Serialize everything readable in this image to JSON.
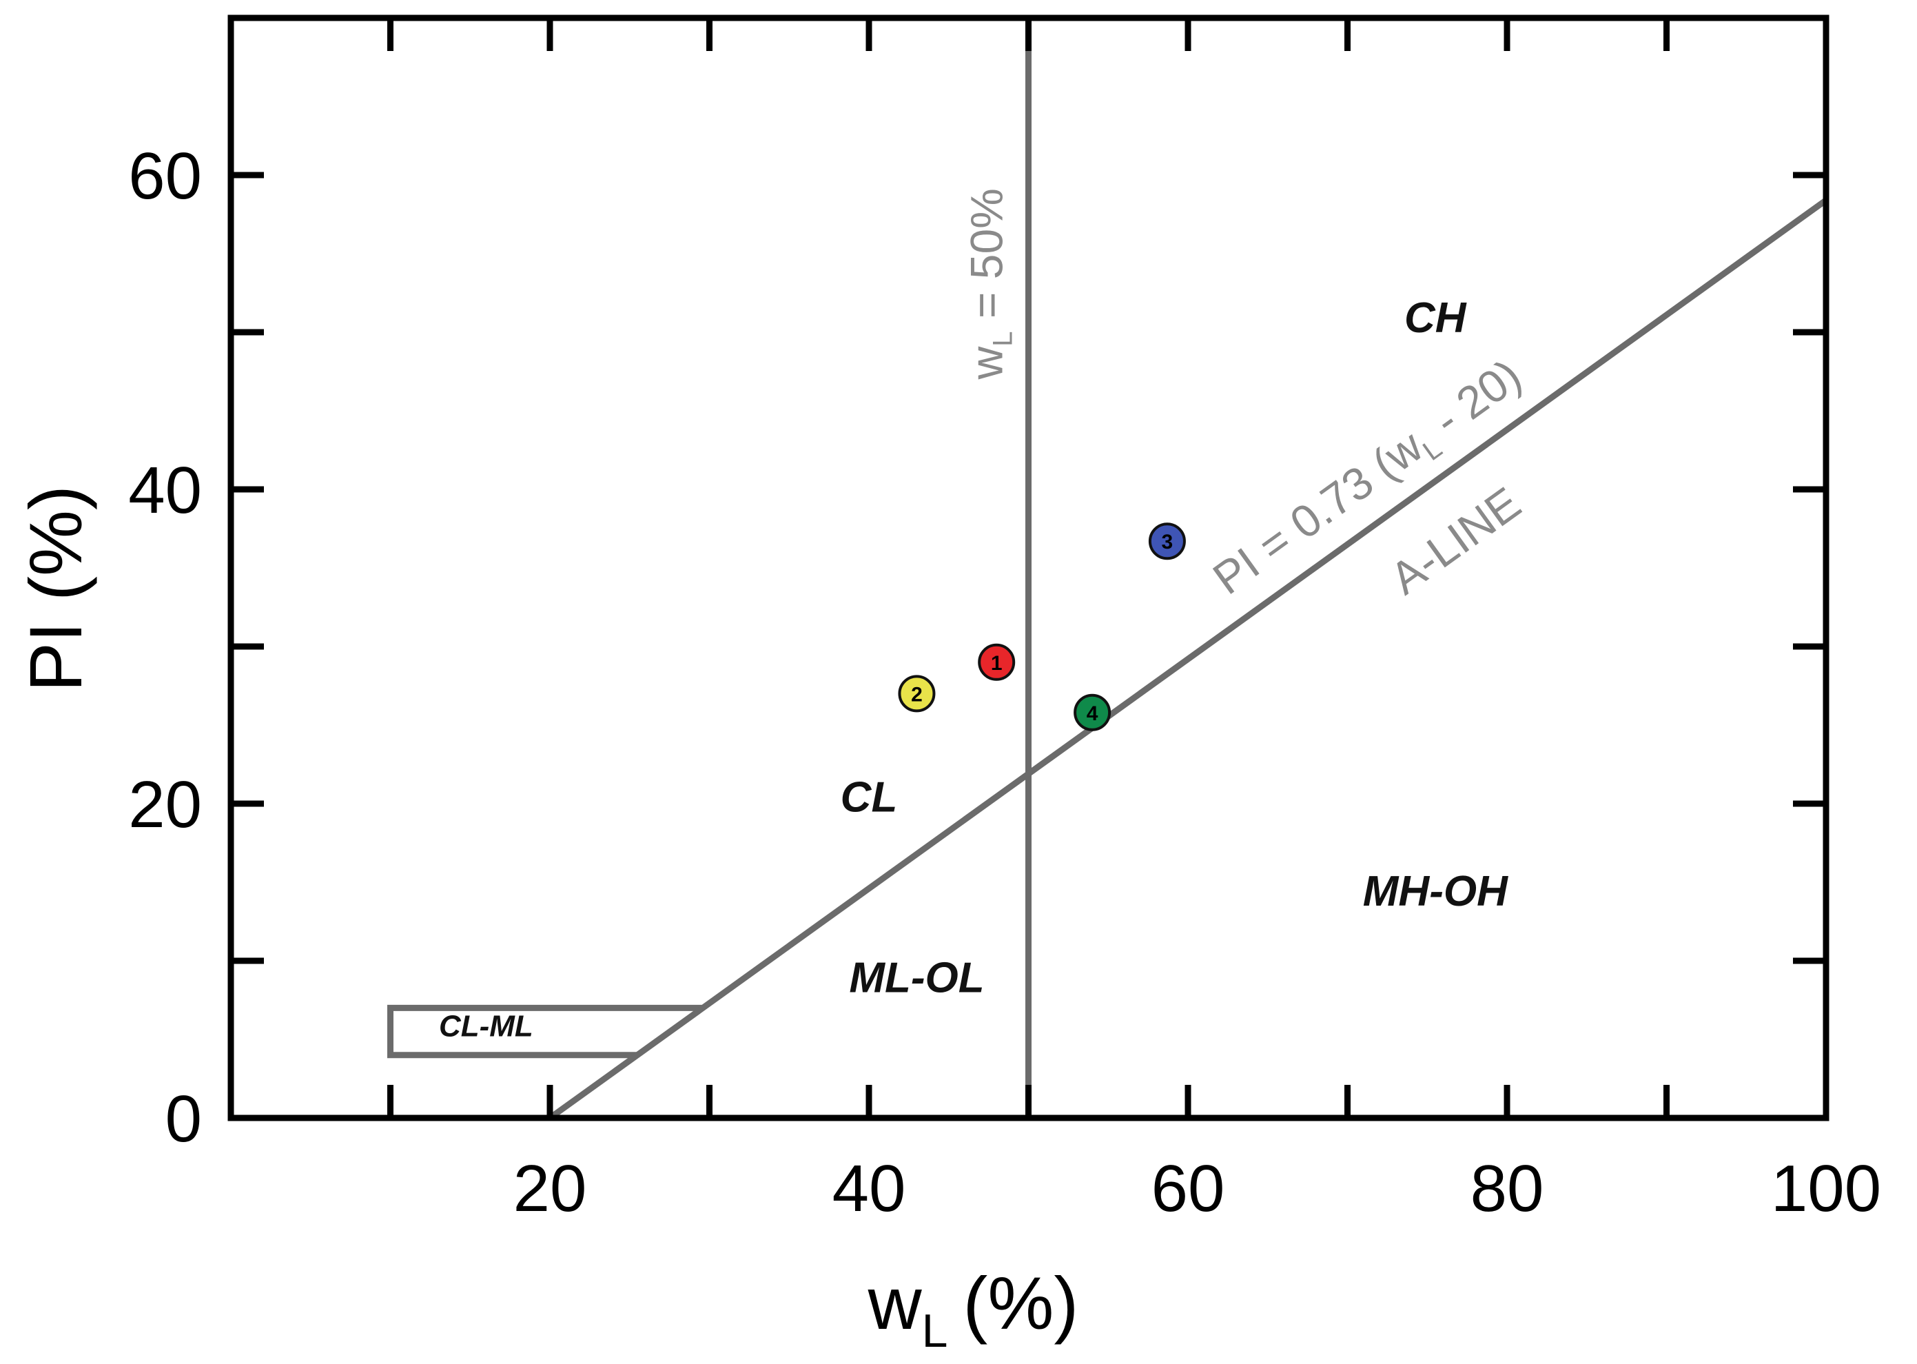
{
  "chart_data": {
    "type": "scatter",
    "title": "",
    "xlabel": "w",
    "xlabel_sub": "L",
    "xlabel_unit": "(%)",
    "ylabel": "PI (%)",
    "xlim": [
      0,
      100
    ],
    "ylim": [
      0,
      70
    ],
    "x_ticks": [
      20,
      40,
      60,
      80,
      100
    ],
    "y_ticks": [
      0,
      20,
      40,
      60
    ],
    "minor_x_ticks": [
      10,
      30,
      50,
      70,
      90
    ],
    "minor_y_ticks": [
      10,
      30,
      50
    ],
    "grid": false,
    "colors": {
      "reference_line": "#6b6b6b",
      "axis": "#000000",
      "point_1": "#e8262a",
      "point_2": "#e9e34a",
      "point_3": "#3f55b5",
      "point_4": "#0f8a4a"
    },
    "points": [
      {
        "label": "1",
        "x": 48,
        "y": 29,
        "color": "#e8262a"
      },
      {
        "label": "2",
        "x": 43,
        "y": 27,
        "color": "#e9e34a"
      },
      {
        "label": "3",
        "x": 58.7,
        "y": 36.7,
        "color": "#3f55b5"
      },
      {
        "label": "4",
        "x": 54,
        "y": 25.8,
        "color": "#0f8a4a"
      }
    ],
    "reference_lines": {
      "a_line": {
        "equation_prefix": "PI = 0.73 (w",
        "equation_sub": "L",
        "equation_suffix": " - 20)",
        "name": "A-LINE",
        "slope": 0.73,
        "intercept_x": 20,
        "x_start": 20,
        "x_end": 100
      },
      "wl_50": {
        "x": 50,
        "label_prefix": "w",
        "label_sub": "L",
        "label_suffix": " = 50%"
      },
      "cl_ml_band": {
        "x_start": 10,
        "pi_low": 4,
        "pi_high": 7
      }
    },
    "zones": [
      {
        "label": "CH",
        "x": 75.5,
        "y": 50
      },
      {
        "label": "CL",
        "x": 40,
        "y": 19.5
      },
      {
        "label": "MH-OH",
        "x": 75.5,
        "y": 13.5
      },
      {
        "label": "ML-OL",
        "x": 43,
        "y": 8
      },
      {
        "label": "CL-ML",
        "x": 16,
        "y": 5.2
      }
    ]
  }
}
